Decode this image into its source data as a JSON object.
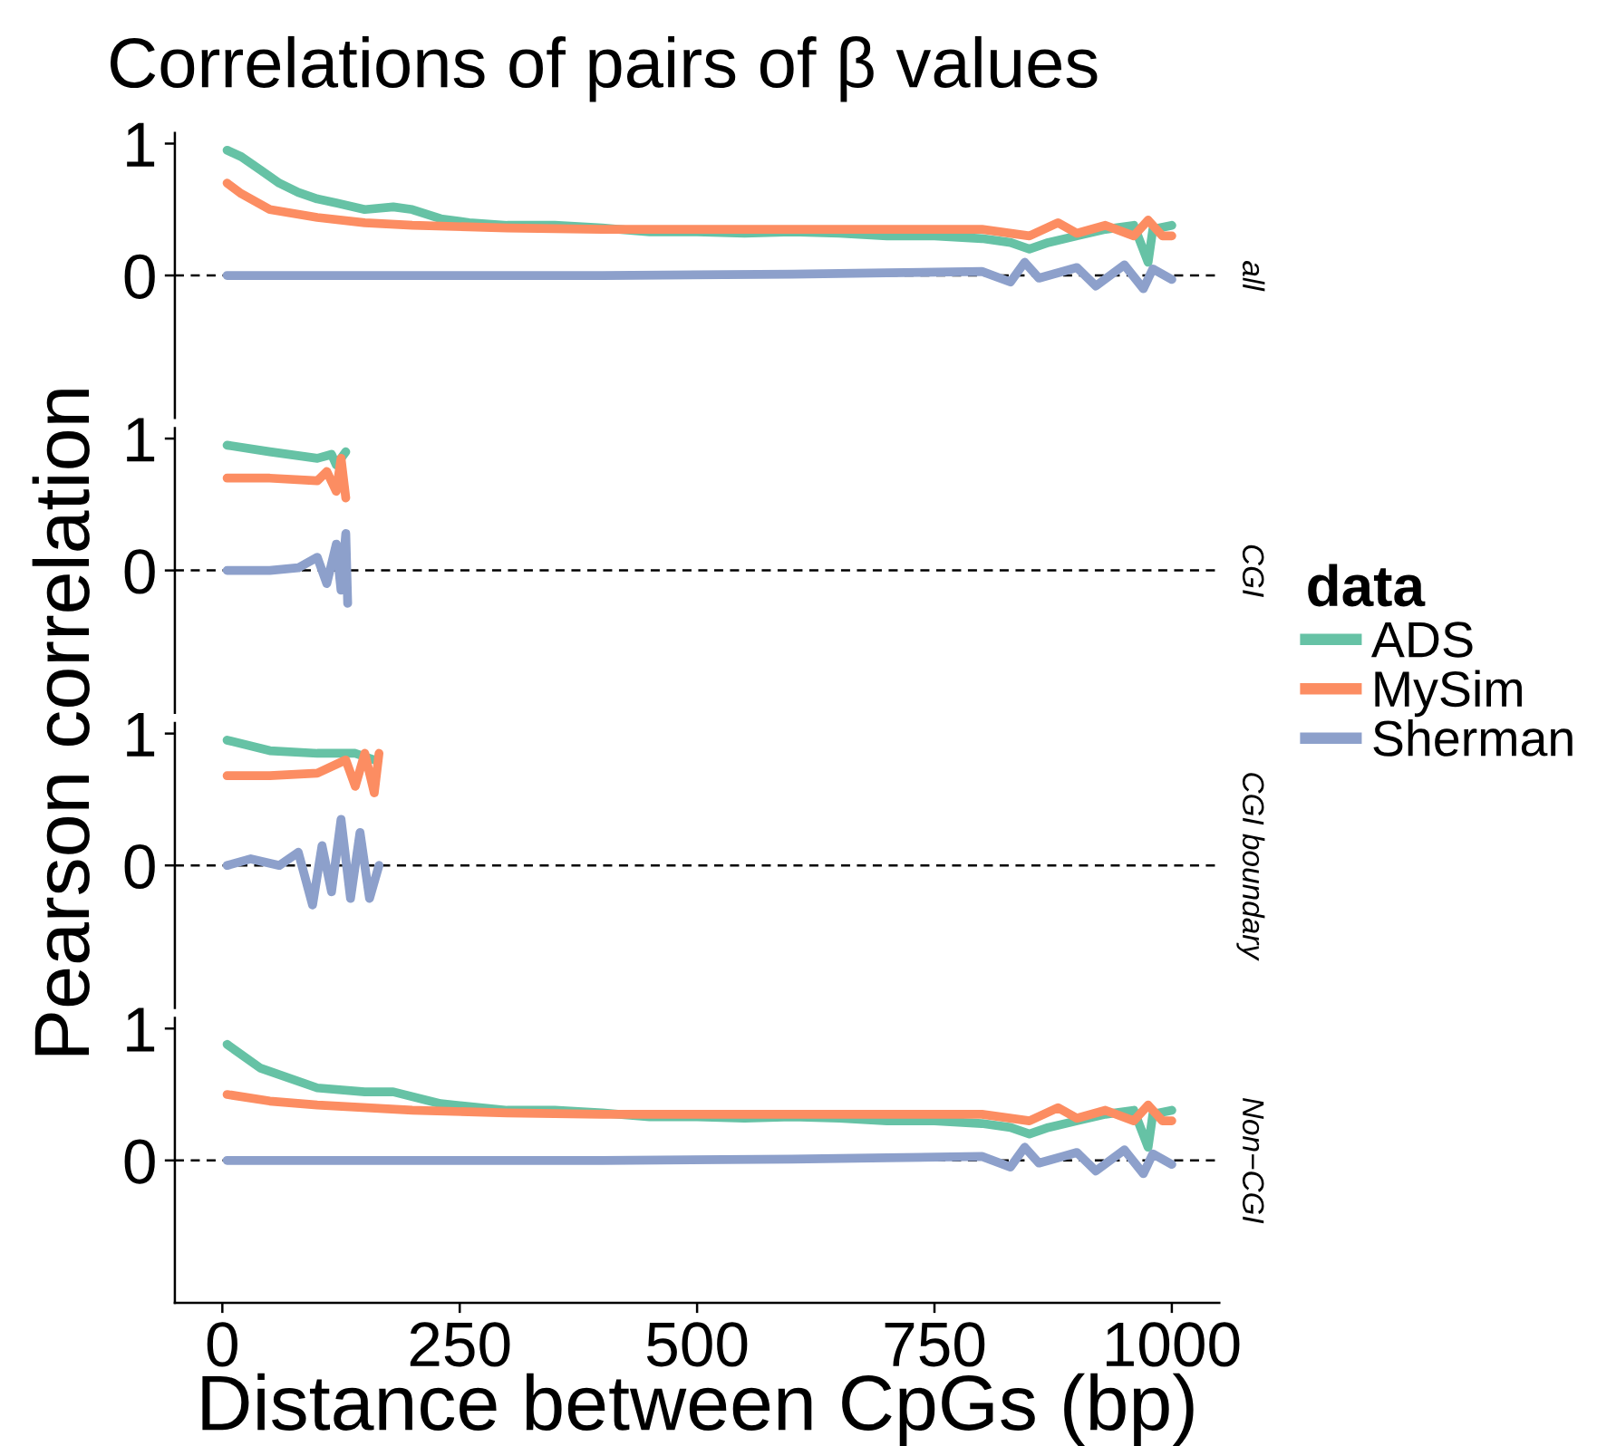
{
  "chart_data": [
    {
      "type": "line",
      "title": "Correlations of pairs of β values",
      "ylabel": "Pearson correlation",
      "legend_title": "data",
      "legend": "right",
      "annotations": [
        "all"
      ],
      "xlim": [
        -50,
        1050
      ],
      "ylim": [
        -1.08,
        1.08
      ],
      "yticks": [
        0,
        1
      ],
      "tick_labels": "y",
      "ref_lines": [
        {
          "axis": "y",
          "value": 0,
          "line_style": "dashed",
          "color": "#000000"
        }
      ],
      "series": [
        {
          "name": "ADS",
          "color": "#66c2a5",
          "x": [
            5,
            20,
            40,
            60,
            80,
            100,
            120,
            150,
            180,
            200,
            230,
            260,
            300,
            350,
            400,
            450,
            500,
            550,
            600,
            650,
            700,
            750,
            800,
            830,
            850,
            870,
            900,
            930,
            960,
            975,
            980,
            1000
          ],
          "values": [
            0.95,
            0.9,
            0.8,
            0.7,
            0.63,
            0.58,
            0.55,
            0.5,
            0.52,
            0.5,
            0.43,
            0.4,
            0.38,
            0.38,
            0.36,
            0.33,
            0.33,
            0.32,
            0.33,
            0.32,
            0.3,
            0.3,
            0.28,
            0.25,
            0.2,
            0.25,
            0.3,
            0.35,
            0.38,
            0.1,
            0.35,
            0.38
          ]
        },
        {
          "name": "MySim",
          "color": "#fc8d62",
          "x": [
            5,
            20,
            50,
            100,
            150,
            200,
            300,
            400,
            500,
            600,
            700,
            800,
            850,
            880,
            900,
            930,
            960,
            975,
            990,
            1000
          ],
          "values": [
            0.7,
            0.62,
            0.5,
            0.44,
            0.4,
            0.38,
            0.36,
            0.35,
            0.35,
            0.35,
            0.35,
            0.35,
            0.3,
            0.4,
            0.32,
            0.38,
            0.3,
            0.42,
            0.3,
            0.3
          ]
        },
        {
          "name": "Sherman",
          "color": "#8da0cb",
          "x": [
            5,
            200,
            400,
            600,
            700,
            800,
            830,
            845,
            860,
            900,
            920,
            950,
            970,
            980,
            1000
          ],
          "values": [
            0,
            0,
            0,
            0.01,
            0.02,
            0.03,
            -0.05,
            0.1,
            -0.02,
            0.06,
            -0.08,
            0.08,
            -0.1,
            0.05,
            -0.03
          ]
        }
      ]
    },
    {
      "type": "line",
      "annotations": [
        "CGI"
      ],
      "xlim": [
        -50,
        1050
      ],
      "ylim": [
        -1.08,
        1.08
      ],
      "yticks": [
        0,
        1
      ],
      "tick_labels": "y",
      "ref_lines": [
        {
          "axis": "y",
          "value": 0,
          "line_style": "dashed",
          "color": "#000000"
        }
      ],
      "series": [
        {
          "name": "ADS",
          "color": "#66c2a5",
          "x": [
            5,
            50,
            100,
            115,
            120,
            130
          ],
          "values": [
            0.95,
            0.9,
            0.85,
            0.88,
            0.8,
            0.9
          ]
        },
        {
          "name": "MySim",
          "color": "#fc8d62",
          "x": [
            5,
            50,
            100,
            110,
            120,
            125,
            130
          ],
          "values": [
            0.7,
            0.7,
            0.68,
            0.75,
            0.6,
            0.85,
            0.55
          ]
        },
        {
          "name": "Sherman",
          "color": "#8da0cb",
          "x": [
            5,
            50,
            80,
            100,
            110,
            120,
            125,
            130,
            132
          ],
          "values": [
            0,
            0,
            0.02,
            0.1,
            -0.1,
            0.2,
            -0.15,
            0.28,
            -0.25
          ]
        }
      ]
    },
    {
      "type": "line",
      "annotations": [
        "CGI boundary"
      ],
      "xlim": [
        -50,
        1050
      ],
      "ylim": [
        -1.08,
        1.08
      ],
      "yticks": [
        0,
        1
      ],
      "tick_labels": "y",
      "ref_lines": [
        {
          "axis": "y",
          "value": 0,
          "line_style": "dashed",
          "color": "#000000"
        }
      ],
      "series": [
        {
          "name": "ADS",
          "color": "#66c2a5",
          "x": [
            5,
            50,
            100,
            140,
            160
          ],
          "values": [
            0.95,
            0.87,
            0.85,
            0.85,
            0.8
          ]
        },
        {
          "name": "MySim",
          "color": "#fc8d62",
          "x": [
            5,
            50,
            100,
            130,
            140,
            150,
            160,
            165
          ],
          "values": [
            0.68,
            0.68,
            0.7,
            0.8,
            0.6,
            0.85,
            0.55,
            0.85
          ]
        },
        {
          "name": "Sherman",
          "color": "#8da0cb",
          "x": [
            5,
            30,
            60,
            80,
            95,
            105,
            115,
            125,
            135,
            145,
            155,
            165
          ],
          "values": [
            0,
            0.05,
            0,
            0.1,
            -0.3,
            0.15,
            -0.2,
            0.35,
            -0.25,
            0.25,
            -0.25,
            0
          ]
        }
      ]
    },
    {
      "type": "line",
      "xlabel": "Distance between CpGs (bp)",
      "annotations": [
        "Non−CGI"
      ],
      "xlim": [
        -50,
        1050
      ],
      "xticks": [
        0,
        250,
        500,
        750,
        1000
      ],
      "ylim": [
        -1.08,
        1.08
      ],
      "yticks": [
        0,
        1
      ],
      "ref_lines": [
        {
          "axis": "y",
          "value": 0,
          "line_style": "dashed",
          "color": "#000000"
        }
      ],
      "series": [
        {
          "name": "ADS",
          "color": "#66c2a5",
          "x": [
            5,
            40,
            100,
            150,
            180,
            230,
            300,
            350,
            400,
            450,
            500,
            550,
            600,
            650,
            700,
            750,
            800,
            830,
            850,
            870,
            900,
            930,
            960,
            975,
            980,
            1000
          ],
          "values": [
            0.88,
            0.7,
            0.55,
            0.52,
            0.52,
            0.43,
            0.38,
            0.38,
            0.36,
            0.33,
            0.33,
            0.32,
            0.33,
            0.32,
            0.3,
            0.3,
            0.28,
            0.25,
            0.2,
            0.25,
            0.3,
            0.35,
            0.38,
            0.1,
            0.35,
            0.38
          ]
        },
        {
          "name": "MySim",
          "color": "#fc8d62",
          "x": [
            5,
            50,
            100,
            200,
            300,
            400,
            500,
            600,
            700,
            800,
            850,
            880,
            900,
            930,
            960,
            975,
            990,
            1000
          ],
          "values": [
            0.5,
            0.45,
            0.42,
            0.38,
            0.36,
            0.35,
            0.35,
            0.35,
            0.35,
            0.35,
            0.3,
            0.4,
            0.32,
            0.38,
            0.3,
            0.42,
            0.3,
            0.3
          ]
        },
        {
          "name": "Sherman",
          "color": "#8da0cb",
          "x": [
            5,
            200,
            400,
            600,
            700,
            800,
            830,
            845,
            860,
            900,
            920,
            950,
            970,
            980,
            1000
          ],
          "values": [
            0,
            0,
            0,
            0.01,
            0.02,
            0.03,
            -0.05,
            0.1,
            -0.02,
            0.06,
            -0.08,
            0.08,
            -0.1,
            0.05,
            -0.03
          ]
        }
      ]
    }
  ]
}
